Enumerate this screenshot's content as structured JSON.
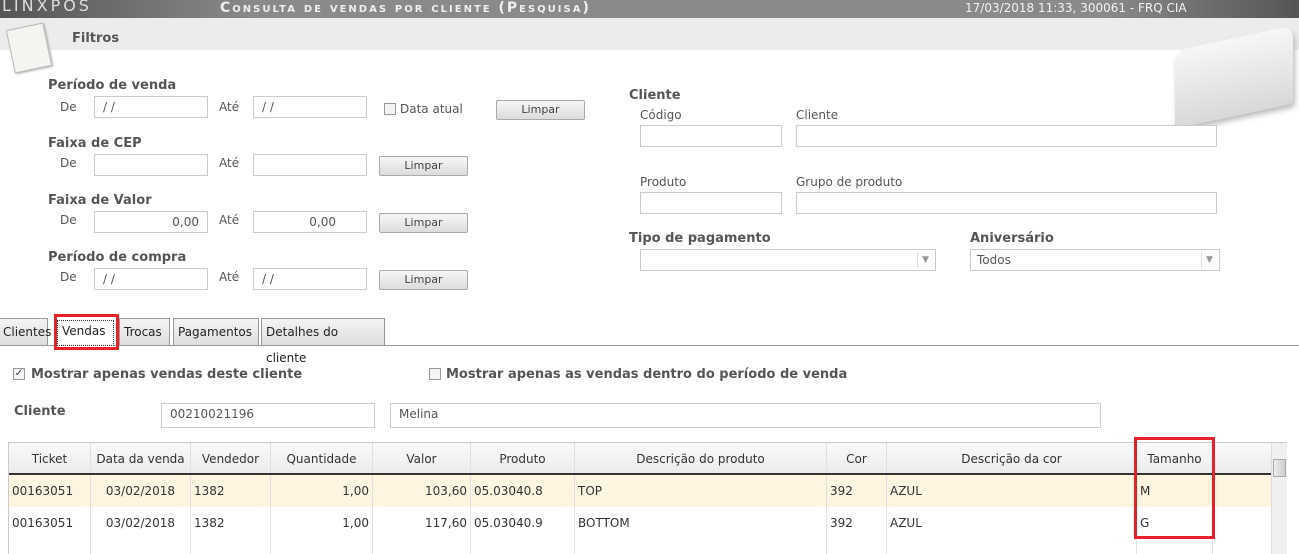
{
  "app": {
    "logo": "LINXPOS",
    "title": "Consulta de vendas por cliente (Pesquisa)",
    "status": "17/03/2018 11:33, 300061 - FRQ CIA"
  },
  "filters": {
    "title": "Filtros",
    "de": "De",
    "ate": "Até",
    "limpar": "Limpar",
    "periodo_venda": {
      "label": "Período de venda",
      "from": " /  /",
      "to": " /  /",
      "data_atual": "Data atual",
      "data_atual_checked": false
    },
    "faixa_cep": {
      "label": "Faixa de CEP",
      "from": "",
      "to": ""
    },
    "faixa_valor": {
      "label": "Faixa de Valor",
      "from": "0,00",
      "to": "0,00"
    },
    "periodo_compra": {
      "label": "Período de compra",
      "from": " /  /",
      "to": " /  /"
    },
    "cliente": {
      "label": "Cliente",
      "codigo_label": "Código",
      "codigo": "",
      "cliente_label": "Cliente",
      "cliente": "",
      "produto_label": "Produto",
      "produto": "",
      "grupo_label": "Grupo de produto",
      "grupo": ""
    },
    "tipo_pagamento": {
      "label": "Tipo de pagamento",
      "value": ""
    },
    "aniversario": {
      "label": "Aniversário",
      "value": "Todos"
    }
  },
  "tabs": [
    {
      "label": "Clientes"
    },
    {
      "label": "Vendas",
      "active": true
    },
    {
      "label": "Trocas"
    },
    {
      "label": "Pagamentos"
    },
    {
      "label": "Detalhes do cliente"
    }
  ],
  "vendas": {
    "only_client": {
      "label": "Mostrar apenas vendas deste cliente",
      "checked": true
    },
    "only_period": {
      "label": "Mostrar apenas as vendas dentro do período de venda",
      "checked": false
    },
    "cliente_label": "Cliente",
    "cliente_codigo": "00210021196",
    "cliente_nome": "Melina",
    "columns": [
      "Ticket",
      "Data da venda",
      "Vendedor",
      "Quantidade",
      "Valor",
      "Produto",
      "Descrição do produto",
      "Cor",
      "Descrição da cor",
      "Tamanho"
    ],
    "rows": [
      [
        "00163051",
        "03/02/2018",
        "1382",
        "1,00",
        "103,60",
        "05.03040.8",
        "TOP",
        "392",
        "AZUL",
        "M"
      ],
      [
        "00163051",
        "03/02/2018",
        "1382",
        "1,00",
        "117,60",
        "05.03040.9",
        "BOTTOM",
        "392",
        "AZUL",
        "G"
      ]
    ]
  },
  "colors": {
    "highlight_row": "#fdf5e0",
    "annotation": "#e8202a"
  }
}
